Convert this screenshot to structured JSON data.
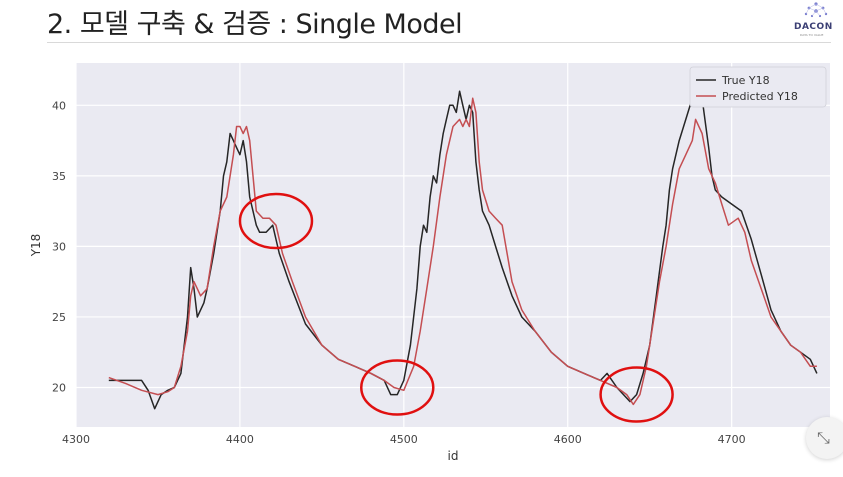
{
  "slide": {
    "title": "2. 모델 구축 & 검증 : Single Model",
    "logo_text": "DACON",
    "logo_sub": "DATA TO VALUE"
  },
  "float_button": {
    "icon": "collapse-icon"
  },
  "colors": {
    "plot_bg": "#eaeaf2",
    "grid": "#ffffff",
    "true_line": "#262626",
    "pred_line": "#c44e52",
    "circle": "#e01010"
  },
  "chart_data": {
    "type": "line",
    "xlabel": "id",
    "ylabel": "Y18",
    "xlim": [
      4300,
      4760
    ],
    "ylim": [
      17.2,
      43
    ],
    "xticks": [
      4300,
      4400,
      4500,
      4600,
      4700
    ],
    "yticks": [
      20,
      25,
      30,
      35,
      40
    ],
    "grid": true,
    "legend_position": "top-right",
    "series": [
      {
        "name": "True Y18",
        "color": "#262626",
        "points": [
          [
            4320,
            20.5
          ],
          [
            4340,
            20.5
          ],
          [
            4344,
            19.8
          ],
          [
            4348,
            18.5
          ],
          [
            4352,
            19.5
          ],
          [
            4356,
            19.8
          ],
          [
            4360,
            20.0
          ],
          [
            4364,
            21.0
          ],
          [
            4368,
            25.0
          ],
          [
            4370,
            28.5
          ],
          [
            4372,
            27.0
          ],
          [
            4374,
            25.0
          ],
          [
            4376,
            25.5
          ],
          [
            4378,
            26.0
          ],
          [
            4380,
            27.0
          ],
          [
            4384,
            29.5
          ],
          [
            4388,
            32.5
          ],
          [
            4390,
            35.0
          ],
          [
            4392,
            36.0
          ],
          [
            4394,
            38.0
          ],
          [
            4396,
            37.5
          ],
          [
            4398,
            37.0
          ],
          [
            4400,
            36.5
          ],
          [
            4402,
            37.5
          ],
          [
            4404,
            36.0
          ],
          [
            4406,
            33.5
          ],
          [
            4408,
            32.5
          ],
          [
            4410,
            31.5
          ],
          [
            4412,
            31.0
          ],
          [
            4416,
            31.0
          ],
          [
            4420,
            31.5
          ],
          [
            4424,
            29.5
          ],
          [
            4430,
            27.5
          ],
          [
            4440,
            24.5
          ],
          [
            4450,
            23.0
          ],
          [
            4460,
            22.0
          ],
          [
            4470,
            21.5
          ],
          [
            4480,
            21.0
          ],
          [
            4488,
            20.5
          ],
          [
            4492,
            19.5
          ],
          [
            4496,
            19.5
          ],
          [
            4500,
            20.5
          ],
          [
            4504,
            23.0
          ],
          [
            4508,
            27.0
          ],
          [
            4510,
            30.0
          ],
          [
            4512,
            31.5
          ],
          [
            4514,
            31.0
          ],
          [
            4516,
            33.5
          ],
          [
            4518,
            35.0
          ],
          [
            4520,
            34.5
          ],
          [
            4522,
            36.5
          ],
          [
            4524,
            38.0
          ],
          [
            4526,
            39.0
          ],
          [
            4528,
            40.0
          ],
          [
            4530,
            40.0
          ],
          [
            4532,
            39.5
          ],
          [
            4534,
            41.0
          ],
          [
            4536,
            40.0
          ],
          [
            4538,
            39.0
          ],
          [
            4540,
            40.0
          ],
          [
            4542,
            39.5
          ],
          [
            4544,
            36.0
          ],
          [
            4546,
            34.0
          ],
          [
            4548,
            32.5
          ],
          [
            4552,
            31.5
          ],
          [
            4556,
            30.0
          ],
          [
            4560,
            28.5
          ],
          [
            4566,
            26.5
          ],
          [
            4572,
            25.0
          ],
          [
            4580,
            24.0
          ],
          [
            4590,
            22.5
          ],
          [
            4600,
            21.5
          ],
          [
            4610,
            21.0
          ],
          [
            4620,
            20.5
          ],
          [
            4624,
            21.0
          ],
          [
            4630,
            20.0
          ],
          [
            4634,
            19.5
          ],
          [
            4638,
            19.0
          ],
          [
            4642,
            19.5
          ],
          [
            4646,
            21.0
          ],
          [
            4650,
            23.0
          ],
          [
            4654,
            26.5
          ],
          [
            4658,
            30.0
          ],
          [
            4660,
            31.5
          ],
          [
            4662,
            34.0
          ],
          [
            4664,
            35.5
          ],
          [
            4668,
            37.5
          ],
          [
            4672,
            39.0
          ],
          [
            4676,
            40.5
          ],
          [
            4678,
            41.5
          ],
          [
            4682,
            40.5
          ],
          [
            4686,
            37.0
          ],
          [
            4688,
            35.0
          ],
          [
            4690,
            34.0
          ],
          [
            4694,
            33.5
          ],
          [
            4700,
            33.0
          ],
          [
            4706,
            32.5
          ],
          [
            4712,
            30.5
          ],
          [
            4718,
            28.0
          ],
          [
            4724,
            25.5
          ],
          [
            4730,
            24.0
          ],
          [
            4736,
            23.0
          ],
          [
            4742,
            22.5
          ],
          [
            4748,
            22.0
          ],
          [
            4752,
            21.0
          ]
        ]
      },
      {
        "name": "Predicted Y18",
        "color": "#c44e52",
        "points": [
          [
            4320,
            20.7
          ],
          [
            4330,
            20.3
          ],
          [
            4340,
            19.8
          ],
          [
            4350,
            19.5
          ],
          [
            4356,
            19.7
          ],
          [
            4360,
            20.0
          ],
          [
            4364,
            21.5
          ],
          [
            4368,
            24.0
          ],
          [
            4370,
            26.5
          ],
          [
            4372,
            27.5
          ],
          [
            4374,
            27.0
          ],
          [
            4376,
            26.5
          ],
          [
            4380,
            27.0
          ],
          [
            4384,
            30.0
          ],
          [
            4388,
            32.5
          ],
          [
            4392,
            33.5
          ],
          [
            4394,
            35.0
          ],
          [
            4396,
            36.5
          ],
          [
            4398,
            38.5
          ],
          [
            4400,
            38.5
          ],
          [
            4402,
            38.0
          ],
          [
            4404,
            38.5
          ],
          [
            4406,
            37.5
          ],
          [
            4408,
            35.0
          ],
          [
            4410,
            32.5
          ],
          [
            4414,
            32.0
          ],
          [
            4418,
            32.0
          ],
          [
            4422,
            31.5
          ],
          [
            4426,
            29.5
          ],
          [
            4432,
            27.5
          ],
          [
            4440,
            25.0
          ],
          [
            4450,
            23.0
          ],
          [
            4460,
            22.0
          ],
          [
            4470,
            21.5
          ],
          [
            4480,
            21.0
          ],
          [
            4488,
            20.5
          ],
          [
            4494,
            20.0
          ],
          [
            4500,
            19.8
          ],
          [
            4506,
            21.5
          ],
          [
            4510,
            24.0
          ],
          [
            4514,
            27.0
          ],
          [
            4518,
            30.0
          ],
          [
            4522,
            33.5
          ],
          [
            4526,
            36.5
          ],
          [
            4530,
            38.5
          ],
          [
            4534,
            39.0
          ],
          [
            4536,
            38.5
          ],
          [
            4538,
            39.0
          ],
          [
            4540,
            38.5
          ],
          [
            4542,
            40.5
          ],
          [
            4544,
            39.5
          ],
          [
            4546,
            36.0
          ],
          [
            4548,
            34.0
          ],
          [
            4552,
            32.5
          ],
          [
            4556,
            32.0
          ],
          [
            4560,
            31.5
          ],
          [
            4566,
            27.5
          ],
          [
            4572,
            25.5
          ],
          [
            4580,
            24.0
          ],
          [
            4590,
            22.5
          ],
          [
            4600,
            21.5
          ],
          [
            4610,
            21.0
          ],
          [
            4620,
            20.5
          ],
          [
            4630,
            20.0
          ],
          [
            4636,
            19.5
          ],
          [
            4640,
            18.8
          ],
          [
            4644,
            19.5
          ],
          [
            4648,
            21.5
          ],
          [
            4652,
            24.5
          ],
          [
            4656,
            27.5
          ],
          [
            4660,
            30.0
          ],
          [
            4664,
            33.0
          ],
          [
            4668,
            35.5
          ],
          [
            4672,
            36.5
          ],
          [
            4676,
            37.5
          ],
          [
            4678,
            39.0
          ],
          [
            4682,
            38.0
          ],
          [
            4686,
            35.5
          ],
          [
            4690,
            34.5
          ],
          [
            4694,
            33.0
          ],
          [
            4698,
            31.5
          ],
          [
            4704,
            32.0
          ],
          [
            4708,
            31.0
          ],
          [
            4712,
            29.0
          ],
          [
            4718,
            27.0
          ],
          [
            4724,
            25.0
          ],
          [
            4730,
            24.0
          ],
          [
            4736,
            23.0
          ],
          [
            4742,
            22.5
          ],
          [
            4748,
            21.5
          ],
          [
            4752,
            21.5
          ]
        ]
      }
    ],
    "annotations": [
      {
        "type": "circle",
        "x": 4422,
        "y": 31.8
      },
      {
        "type": "circle",
        "x": 4496,
        "y": 20.0
      },
      {
        "type": "circle",
        "x": 4642,
        "y": 19.5
      }
    ]
  }
}
